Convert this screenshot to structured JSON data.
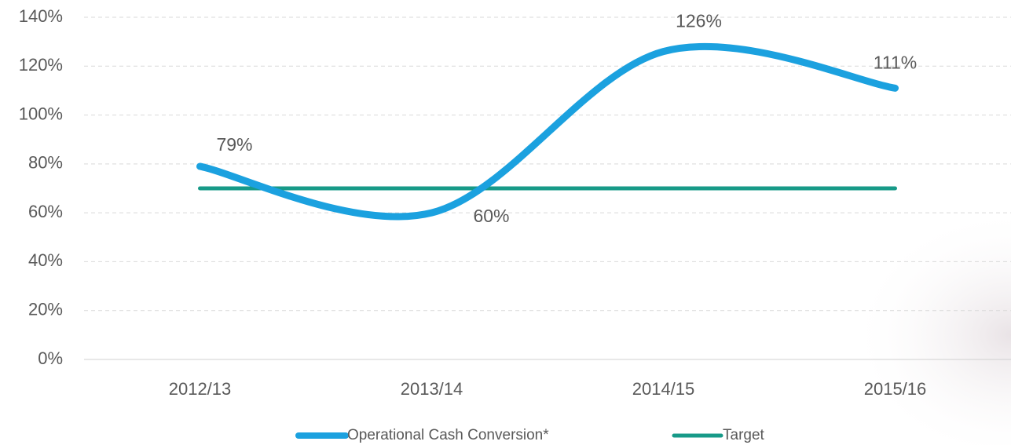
{
  "chart_data": {
    "type": "line",
    "categories": [
      "2012/13",
      "2013/14",
      "2014/15",
      "2015/16"
    ],
    "series": [
      {
        "name": "Operational Cash Conversion*",
        "color": "#1ba1df",
        "smooth": true,
        "values": [
          79,
          60,
          126,
          111
        ],
        "value_labels": [
          "79%",
          "60%",
          "126%",
          "111%"
        ]
      },
      {
        "name": "Target",
        "color": "#179a88",
        "smooth": false,
        "values": [
          70,
          70,
          70,
          70
        ]
      }
    ],
    "ylim": [
      0,
      140
    ],
    "yticks": [
      {
        "value": 0,
        "label": "0%"
      },
      {
        "value": 20,
        "label": "20%"
      },
      {
        "value": 40,
        "label": "40%"
      },
      {
        "value": 60,
        "label": "60%"
      },
      {
        "value": 80,
        "label": "80%"
      },
      {
        "value": 100,
        "label": "100%"
      },
      {
        "value": 120,
        "label": "120%"
      },
      {
        "value": 140,
        "label": "140%"
      }
    ],
    "grid": true,
    "legend": "bottom"
  }
}
